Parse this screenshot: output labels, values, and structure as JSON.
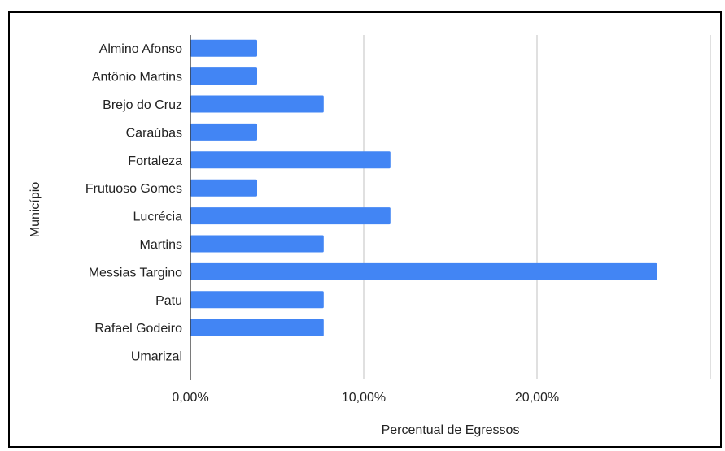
{
  "chart_data": {
    "type": "bar",
    "orientation": "horizontal",
    "title": "",
    "xlabel": "Percentual de Egressos",
    "ylabel": "Município",
    "categories": [
      "Almino Afonso",
      "Antônio Martins",
      "Brejo do Cruz",
      "Caraúbas",
      "Fortaleza",
      "Frutuoso Gomes",
      "Lucrécia",
      "Martins",
      "Messias Targino",
      "Patu",
      "Rafael Godeiro",
      "Umarizal"
    ],
    "values": [
      3.85,
      3.85,
      7.69,
      3.85,
      11.54,
      3.85,
      11.54,
      7.69,
      26.92,
      7.69,
      7.69,
      0
    ],
    "xlim": [
      0,
      30
    ],
    "xticks": [
      0,
      10,
      20
    ],
    "xtick_labels": [
      "0,00%",
      "10,00%",
      "20,00%"
    ],
    "grid": true,
    "legend": "none",
    "bar_color": "#4285f4",
    "grid_color": "#cccccc"
  }
}
